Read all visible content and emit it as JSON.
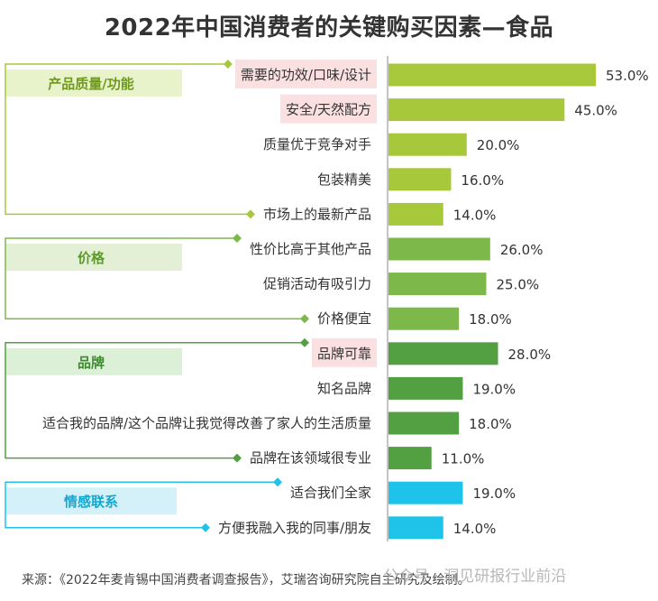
{
  "page": {
    "title": "2022年中国消费者的关键购买因素—食品"
  },
  "chart_data": {
    "type": "bar",
    "orientation": "horizontal",
    "title": "2022年中国消费者的关键购买因素—食品",
    "value_unit": "%",
    "xlim": [
      0,
      60
    ],
    "groups": [
      {
        "name": "产品质量/功能",
        "color": "#a7c83a",
        "label_color": "#6f9a1a",
        "bg": "#e8f3cc",
        "items": [
          {
            "label": "需要的功效/口味/设计",
            "value": 53.0,
            "value_text": "53.0%",
            "highlight": true
          },
          {
            "label": "安全/天然配方",
            "value": 45.0,
            "value_text": "45.0%",
            "highlight": true
          },
          {
            "label": "质量优于竞争对手",
            "value": 20.0,
            "value_text": "20.0%",
            "highlight": false
          },
          {
            "label": "包装精美",
            "value": 16.0,
            "value_text": "16.0%",
            "highlight": false
          },
          {
            "label": "市场上的最新产品",
            "value": 14.0,
            "value_text": "14.0%",
            "highlight": false
          }
        ]
      },
      {
        "name": "价格",
        "color": "#7cb84a",
        "label_color": "#5c9a2c",
        "bg": "#e3f0d6",
        "items": [
          {
            "label": "性价比高于其他产品",
            "value": 26.0,
            "value_text": "26.0%",
            "highlight": false
          },
          {
            "label": "促销活动有吸引力",
            "value": 25.0,
            "value_text": "25.0%",
            "highlight": false
          },
          {
            "label": "价格便宜",
            "value": 18.0,
            "value_text": "18.0%",
            "highlight": false
          }
        ]
      },
      {
        "name": "品牌",
        "color": "#52a042",
        "label_color": "#3f8a30",
        "bg": "#dcefd7",
        "items": [
          {
            "label": "品牌可靠",
            "value": 28.0,
            "value_text": "28.0%",
            "highlight": true
          },
          {
            "label": "知名品牌",
            "value": 19.0,
            "value_text": "19.0%",
            "highlight": false
          },
          {
            "label": "适合我的品牌/这个品牌让我觉得改善了家人的生活质量",
            "value": 18.0,
            "value_text": "18.0%",
            "highlight": false
          },
          {
            "label": "品牌在该领域很专业",
            "value": 11.0,
            "value_text": "11.0%",
            "highlight": false
          }
        ]
      },
      {
        "name": "情感联系",
        "color": "#1fc3ea",
        "label_color": "#12a8d0",
        "bg": "#d4f1fa",
        "items": [
          {
            "label": "适合我们全家",
            "value": 19.0,
            "value_text": "19.0%",
            "highlight": false
          },
          {
            "label": "方便我融入我的同事/朋友",
            "value": 14.0,
            "value_text": "14.0%",
            "highlight": false
          }
        ]
      }
    ],
    "highlight_color": "#fbe0e2",
    "axis_color": "#888888"
  },
  "footer": {
    "source": "来源：《2022年麦肯锡中国消费者调查报告》，艾瑞咨询研究院自主研究及绘制。",
    "watermark": "公众号 · 洞见研报行业前沿"
  }
}
